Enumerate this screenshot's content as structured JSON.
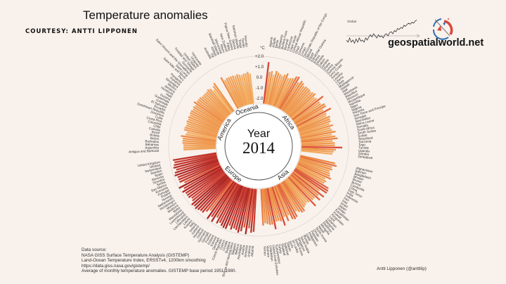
{
  "header": {
    "title": "Temperature anomalies",
    "courtesy": "COURTESY: ANTTI LIPPONEN"
  },
  "brand": {
    "name": "geospatialworld.net",
    "colors": {
      "red": "#d9473b",
      "blue": "#2f6fb0"
    }
  },
  "inset": {
    "label": "Global"
  },
  "footer": {
    "source_lines": [
      "Data source:",
      "NASA GISS Surface Temperature Analysis (GISTEMP)",
      "Land-Ocean Temperature Index, ERSSTv4, 1200km smoothing",
      "https://data.giss.nasa.gov/gistemp/",
      "Average of monthly temperature anomalies. GISTEMP base period 1951-1980."
    ],
    "attribution": "Antti Lipponen (@anttilip)"
  },
  "chart_data": [
    {
      "type": "bar",
      "layout": "radial",
      "center_label": "Year",
      "year": "2014",
      "unit": "°C",
      "scale_ticks": [
        "+2.0",
        "+1.0",
        "0.0",
        "-1.0",
        "-2.0"
      ],
      "ylim": [
        -2.0,
        2.0
      ],
      "color_scale": [
        "#fbe3ad",
        "#f4b466",
        "#ec8a45",
        "#d8483a",
        "#a3201f"
      ],
      "groups": [
        {
          "name": "Africa",
          "countries": [
            "Algeria",
            "Angola",
            "Benin",
            "Botswana",
            "Burkina Faso",
            "Burundi",
            "Cameroon",
            "Cape Verde",
            "Central African Republic",
            "Chad",
            "Comoros",
            "Congo",
            "Democratic Republic of the Congo",
            "Djibouti",
            "Egypt",
            "Equatorial Guinea",
            "Eritrea",
            "Ethiopia",
            "Gabon",
            "Gambia",
            "Ghana",
            "Guinea",
            "Guinea-Bissau",
            "Ivory Coast",
            "Kenya",
            "Lesotho",
            "Liberia",
            "Libya",
            "Madagascar",
            "Malawi",
            "Mali",
            "Mauritania",
            "Mauritius",
            "Morocco",
            "Mozambique",
            "Namibia",
            "Niger",
            "Nigeria",
            "Rwanda",
            "Sao Tome and Principe",
            "Senegal",
            "Seychelles",
            "Sierra Leone",
            "Somalia",
            "South Africa",
            "South Sudan",
            "Sudan",
            "Swaziland",
            "Tanzania",
            "Togo",
            "Tunisia",
            "Uganda",
            "Zambia",
            "Zimbabwe"
          ],
          "values": [
            1.5,
            0.6,
            0.7,
            0.4,
            0.8,
            0.7,
            0.6,
            0.5,
            0.7,
            0.9,
            0.5,
            0.6,
            0.7,
            1.0,
            1.1,
            0.6,
            0.9,
            0.8,
            0.6,
            0.7,
            0.7,
            0.7,
            0.6,
            0.7,
            0.8,
            0.5,
            0.6,
            1.2,
            0.6,
            0.6,
            0.9,
            0.9,
            0.5,
            1.2,
            0.6,
            0.5,
            0.8,
            0.7,
            0.7,
            0.5,
            0.8,
            0.5,
            0.6,
            0.9,
            0.5,
            0.8,
            1.0,
            0.5,
            0.7,
            0.7,
            1.4,
            0.8,
            0.6,
            0.5
          ]
        },
        {
          "name": "Asia",
          "countries": [
            "Afghanistan",
            "Bahrain",
            "Bangladesh",
            "Bhutan",
            "Brunei",
            "Burma",
            "Cambodia",
            "China",
            "East Timor",
            "India",
            "Indonesia",
            "Iran",
            "Iraq",
            "Israel",
            "Japan",
            "Jordan",
            "Kazakhstan",
            "Kuwait",
            "Kyrgyzstan",
            "Laos",
            "Lebanon",
            "Malaysia",
            "Maldives",
            "Mongolia",
            "Nepal",
            "North Korea",
            "Oman",
            "Pakistan",
            "Philippines",
            "Qatar",
            "Russia",
            "Saudi Arabia",
            "Singapore",
            "South Korea",
            "Sri Lanka",
            "Syria",
            "Taiwan",
            "Tajikistan",
            "Thailand",
            "Turkey",
            "Turkmenistan",
            "United Arab Emirates",
            "Uzbekistan",
            "Vietnam",
            "Yemen"
          ],
          "values": [
            0.9,
            1.1,
            0.7,
            0.8,
            0.6,
            0.7,
            0.8,
            1.0,
            0.5,
            0.7,
            0.6,
            1.2,
            1.3,
            1.3,
            0.6,
            1.3,
            0.8,
            1.2,
            0.7,
            0.7,
            1.3,
            0.6,
            0.5,
            0.6,
            0.7,
            1.0,
            1.0,
            0.8,
            0.6,
            1.1,
            1.2,
            1.1,
            0.6,
            1.1,
            0.6,
            1.4,
            0.9,
            0.8,
            0.8,
            1.5,
            1.0,
            1.0,
            0.9,
            0.8,
            1.0
          ]
        },
        {
          "name": "Europe",
          "countries": [
            "Albania",
            "Andorra",
            "Armenia",
            "Austria",
            "Azerbaijan",
            "Belarus",
            "Belgium",
            "Bosnia and Herzegovina",
            "Bulgaria",
            "Croatia",
            "Cyprus",
            "Czech Republic",
            "Denmark",
            "Estonia",
            "Finland",
            "France",
            "Georgia",
            "Germany",
            "Greece",
            "Hungary",
            "Iceland",
            "Ireland",
            "Italy",
            "Kosovo",
            "Latvia",
            "Liechtenstein",
            "Lithuania",
            "Luxembourg",
            "Macedonia",
            "Malta",
            "Moldova",
            "Monaco",
            "Montenegro",
            "Netherlands",
            "Norway",
            "Poland",
            "Portugal",
            "Romania",
            "San Marino",
            "Serbia",
            "Slovakia",
            "Slovenia",
            "Spain",
            "Sweden",
            "Switzerland",
            "Ukraine",
            "United Kingdom"
          ],
          "values": [
            1.6,
            1.7,
            1.3,
            1.9,
            1.3,
            1.7,
            1.9,
            1.7,
            1.6,
            1.8,
            1.5,
            1.9,
            1.9,
            1.8,
            1.6,
            1.8,
            1.3,
            1.9,
            1.5,
            1.9,
            1.1,
            1.4,
            1.7,
            1.7,
            1.8,
            1.9,
            1.8,
            1.9,
            1.6,
            1.5,
            1.7,
            1.7,
            1.7,
            1.9,
            1.6,
            2.0,
            1.3,
            1.7,
            1.7,
            1.7,
            1.9,
            1.8,
            1.6,
            1.8,
            1.7,
            1.6,
            1.7
          ]
        },
        {
          "name": "America",
          "countries": [
            "Antigua and Barbuda",
            "Argentina",
            "Bahamas",
            "Barbados",
            "Belize",
            "Bolivia",
            "Brazil",
            "Canada",
            "Chile",
            "Colombia",
            "Costa Rica",
            "Cuba",
            "Dominica",
            "Dominican Republic",
            "Ecuador",
            "El Salvador",
            "Grenada",
            "Guatemala",
            "Guyana",
            "Haiti",
            "Honduras",
            "Jamaica",
            "Mexico",
            "Nicaragua",
            "Panama",
            "Paraguay",
            "Peru",
            "Saint Kitts and Nevis",
            "Saint Lucia",
            "Saint Vincent and the Grenadines",
            "Suriname",
            "Trinidad and Tobago",
            "United States",
            "Uruguay",
            "Venezuela"
          ],
          "values": [
            0.6,
            0.6,
            0.6,
            0.7,
            0.7,
            0.7,
            0.9,
            0.5,
            0.4,
            0.7,
            0.7,
            0.6,
            0.6,
            0.7,
            0.6,
            0.7,
            0.6,
            0.7,
            0.7,
            0.6,
            0.7,
            0.6,
            0.9,
            0.7,
            0.7,
            0.7,
            0.6,
            0.6,
            0.6,
            0.6,
            0.7,
            0.6,
            0.3,
            0.6,
            0.8
          ]
        },
        {
          "name": "Oceania",
          "countries": [
            "Australia",
            "Fiji",
            "Kiribati",
            "Marshall Islands",
            "Micronesia",
            "Nauru",
            "New Zealand",
            "Palau",
            "Papua New Guinea",
            "Samoa",
            "Solomon Islands",
            "Tonga",
            "Tuvalu",
            "Vanuatu"
          ],
          "values": [
            0.9,
            0.5,
            0.6,
            0.6,
            0.6,
            0.6,
            0.5,
            0.6,
            0.5,
            0.4,
            0.5,
            0.5,
            0.6,
            0.4
          ]
        }
      ]
    },
    {
      "type": "line",
      "title": "Global",
      "values": [
        -0.2,
        -0.3,
        -0.1,
        -0.3,
        -0.2,
        -0.35,
        -0.15,
        -0.3,
        -0.1,
        -0.25,
        -0.2,
        -0.3,
        -0.1,
        -0.2,
        -0.05,
        0.05,
        -0.05,
        0.1,
        0.0,
        -0.1,
        0.05,
        -0.05,
        0.0,
        -0.1,
        0.05,
        0.1,
        0.0,
        0.15,
        0.2,
        0.1,
        0.25,
        0.2,
        0.35,
        0.3,
        0.4,
        0.35,
        0.5,
        0.45,
        0.55,
        0.6,
        0.55,
        0.65,
        0.6,
        0.7,
        0.75
      ]
    }
  ]
}
